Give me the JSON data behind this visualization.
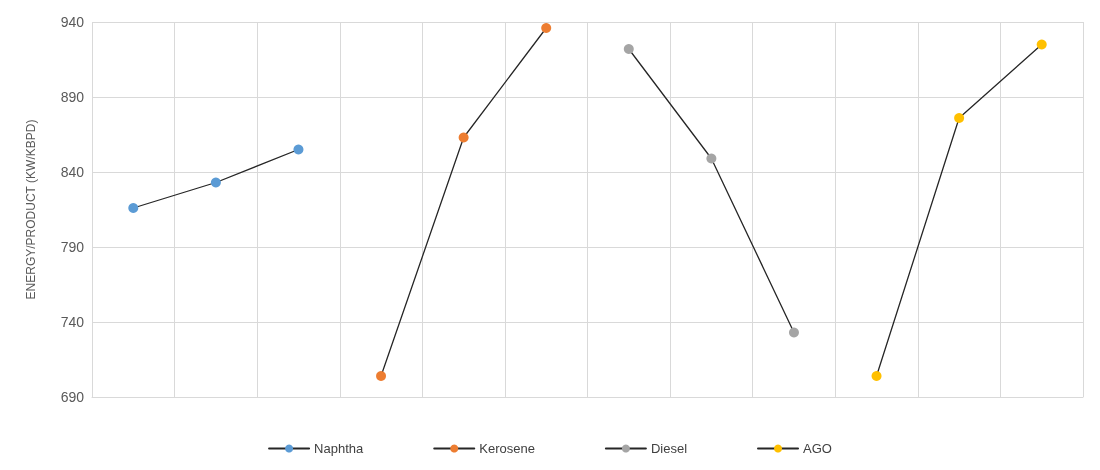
{
  "chart_data": {
    "type": "line",
    "ylabel": "ENERGY/PRODUCT (KW/KBPD)",
    "categories": [
      null,
      null,
      null,
      null,
      null,
      null,
      null,
      null,
      null,
      null,
      null,
      null
    ],
    "series": [
      {
        "name": "Naphtha",
        "color": "#5b9bd5",
        "values": [
          816,
          833,
          855,
          null,
          null,
          null,
          null,
          null,
          null,
          null,
          null,
          null
        ]
      },
      {
        "name": "Kerosene",
        "color": "#ed7d31",
        "values": [
          null,
          null,
          null,
          704,
          863,
          936,
          null,
          null,
          null,
          null,
          null,
          null
        ]
      },
      {
        "name": "Diesel",
        "color": "#a5a5a5",
        "values": [
          null,
          null,
          null,
          null,
          null,
          null,
          922,
          849,
          733,
          null,
          null,
          null
        ]
      },
      {
        "name": "AGO",
        "color": "#ffc000",
        "values": [
          null,
          null,
          null,
          null,
          null,
          null,
          null,
          null,
          null,
          704,
          876,
          925
        ]
      }
    ],
    "ylim": [
      690,
      940
    ],
    "yticks": [
      690,
      740,
      790,
      840,
      890,
      940
    ],
    "grid": true,
    "legend": "bottom",
    "marker": "circle",
    "line_style": "solid"
  }
}
